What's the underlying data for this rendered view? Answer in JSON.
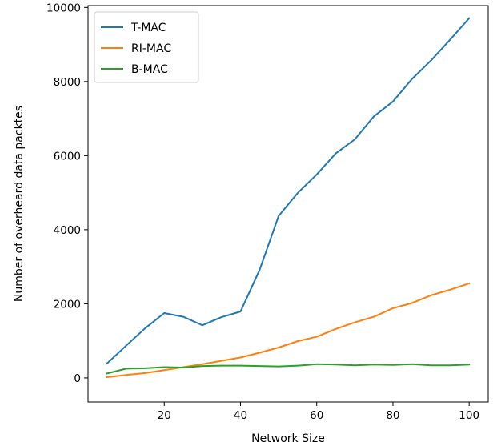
{
  "chart_data": {
    "type": "line",
    "xlabel": "Network Size",
    "ylabel": "Number of overheard data packtes",
    "xlim": [
      0,
      105
    ],
    "ylim": [
      -650,
      10050
    ],
    "xticks": [
      20,
      40,
      60,
      80,
      100
    ],
    "yticks": [
      0,
      2000,
      4000,
      6000,
      8000,
      10000
    ],
    "grid": false,
    "legend": "top-left",
    "x": [
      5,
      10,
      15,
      20,
      25,
      30,
      35,
      40,
      45,
      50,
      55,
      60,
      65,
      70,
      75,
      80,
      85,
      90,
      95,
      100
    ],
    "series": [
      {
        "name": "T-MAC",
        "color": "#1f77b4",
        "values": [
          390,
          870,
          1340,
          1750,
          1650,
          1420,
          1640,
          1790,
          2910,
          4370,
          4990,
          5490,
          6060,
          6440,
          7060,
          7460,
          8070,
          8570,
          9130,
          9710
        ]
      },
      {
        "name": "RI-MAC",
        "color": "#ff7f0e",
        "values": [
          20,
          80,
          130,
          210,
          290,
          370,
          460,
          550,
          680,
          820,
          990,
          1110,
          1320,
          1500,
          1650,
          1880,
          2020,
          2230,
          2380,
          2550
        ]
      },
      {
        "name": "B-MAC",
        "color": "#2ca02c",
        "values": [
          120,
          250,
          260,
          290,
          280,
          320,
          330,
          330,
          320,
          310,
          330,
          370,
          360,
          340,
          360,
          350,
          370,
          340,
          340,
          360
        ]
      }
    ]
  }
}
